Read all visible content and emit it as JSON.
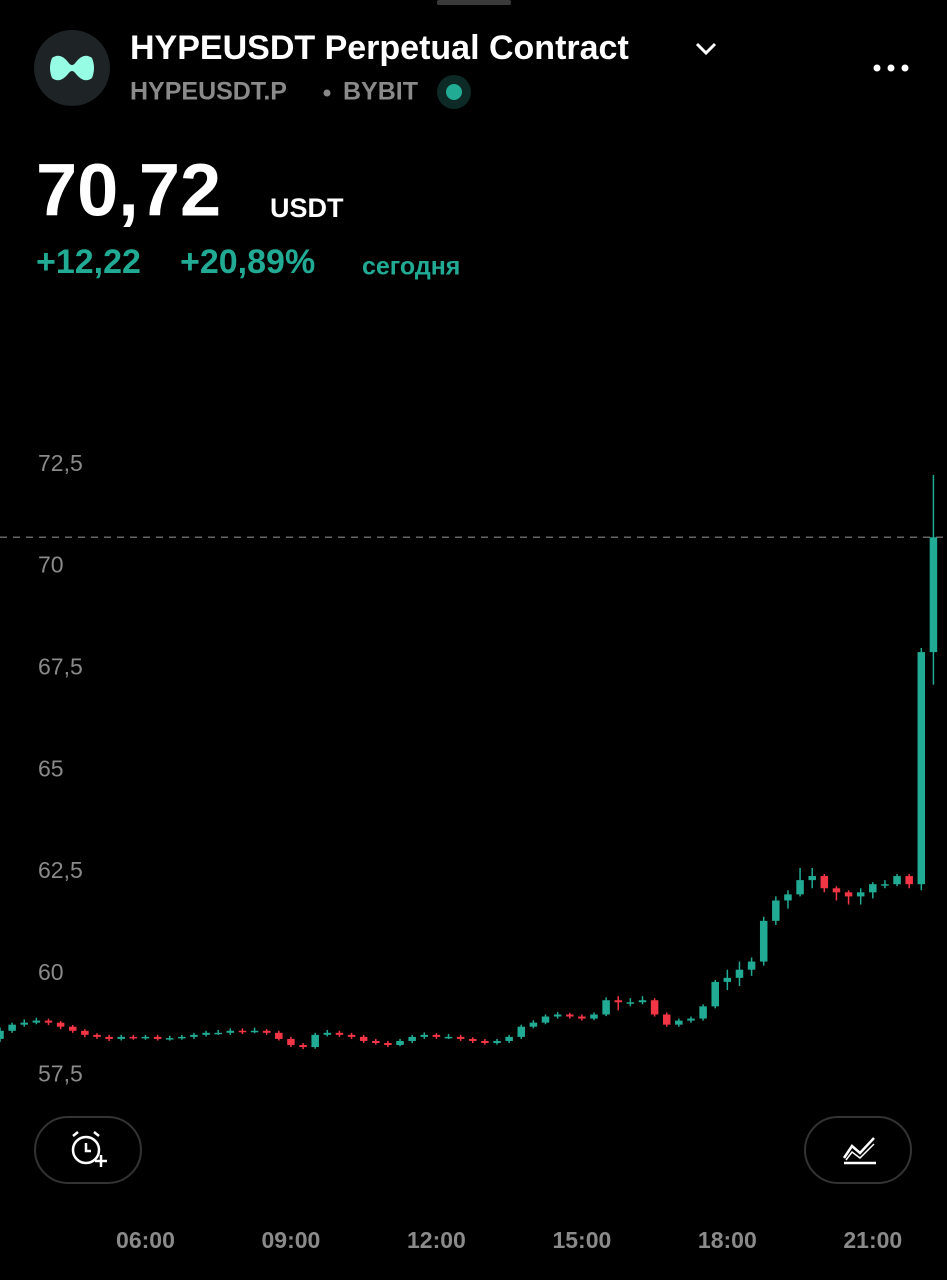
{
  "header": {
    "title": "HYPEUSDT Perpetual Contract",
    "symbol": "HYPEUSDT.P",
    "exchange": "BYBIT"
  },
  "price": {
    "last": "70,72",
    "currency": "USDT",
    "change": "+12,22",
    "change_percent": "+20,89%",
    "period": "сегодня"
  },
  "chart_data": {
    "type": "candlestick",
    "up_color": "#22ab94",
    "down_color": "#f23645",
    "x": [
      3,
      3.25,
      3.5,
      3.75,
      4,
      4.25,
      4.5,
      4.75,
      5,
      5.25,
      5.5,
      5.75,
      6,
      6.25,
      6.5,
      6.75,
      7,
      7.25,
      7.5,
      7.75,
      8,
      8.25,
      8.5,
      8.75,
      9,
      9.25,
      9.5,
      9.75,
      10,
      10.25,
      10.5,
      10.75,
      11,
      11.25,
      11.5,
      11.75,
      12,
      12.25,
      12.5,
      12.75,
      13,
      13.25,
      13.5,
      13.75,
      14,
      14.25,
      14.5,
      14.75,
      15,
      15.25,
      15.5,
      15.75,
      16,
      16.25,
      16.5,
      16.75,
      17,
      17.25,
      17.5,
      17.75,
      18,
      18.25,
      18.5,
      18.75,
      19,
      19.25,
      19.5,
      19.75,
      20,
      20.25,
      20.5,
      20.75,
      21,
      21.25,
      21.5,
      21.75,
      22,
      22.25
    ],
    "candles": [
      [
        58.4,
        58.68,
        58.32,
        58.6
      ],
      [
        58.6,
        58.8,
        58.55,
        58.75
      ],
      [
        58.75,
        58.88,
        58.7,
        58.8
      ],
      [
        58.8,
        58.92,
        58.76,
        58.85
      ],
      [
        58.85,
        58.9,
        58.74,
        58.8
      ],
      [
        58.8,
        58.84,
        58.64,
        58.7
      ],
      [
        58.7,
        58.74,
        58.55,
        58.6
      ],
      [
        58.6,
        58.64,
        58.44,
        58.5
      ],
      [
        58.5,
        58.54,
        58.4,
        58.45
      ],
      [
        58.45,
        58.5,
        58.35,
        58.4
      ],
      [
        58.4,
        58.5,
        58.36,
        58.45
      ],
      [
        58.45,
        58.5,
        58.38,
        58.42
      ],
      [
        58.42,
        58.5,
        58.38,
        58.45
      ],
      [
        58.45,
        58.5,
        58.36,
        58.4
      ],
      [
        58.4,
        58.48,
        58.36,
        58.42
      ],
      [
        58.42,
        58.5,
        58.38,
        58.45
      ],
      [
        58.45,
        58.55,
        58.4,
        58.5
      ],
      [
        58.5,
        58.6,
        58.46,
        58.55
      ],
      [
        58.55,
        58.62,
        58.5,
        58.55
      ],
      [
        58.55,
        58.66,
        58.5,
        58.6
      ],
      [
        58.6,
        58.66,
        58.52,
        58.58
      ],
      [
        58.58,
        58.68,
        58.54,
        58.6
      ],
      [
        58.6,
        58.64,
        58.5,
        58.55
      ],
      [
        58.55,
        58.6,
        58.36,
        58.4
      ],
      [
        58.4,
        58.45,
        58.2,
        58.25
      ],
      [
        58.25,
        58.3,
        58.15,
        58.2
      ],
      [
        58.2,
        58.55,
        58.16,
        58.5
      ],
      [
        58.5,
        58.62,
        58.46,
        58.55
      ],
      [
        58.55,
        58.6,
        58.45,
        58.5
      ],
      [
        58.5,
        58.55,
        58.4,
        58.45
      ],
      [
        58.45,
        58.5,
        58.3,
        58.35
      ],
      [
        58.35,
        58.4,
        58.26,
        58.3
      ],
      [
        58.3,
        58.35,
        58.2,
        58.25
      ],
      [
        58.25,
        58.4,
        58.22,
        58.35
      ],
      [
        58.35,
        58.5,
        58.3,
        58.45
      ],
      [
        58.45,
        58.56,
        58.4,
        58.5
      ],
      [
        58.5,
        58.54,
        58.4,
        58.45
      ],
      [
        58.45,
        58.52,
        58.4,
        58.45
      ],
      [
        58.45,
        58.5,
        58.35,
        58.4
      ],
      [
        58.4,
        58.44,
        58.3,
        58.35
      ],
      [
        58.35,
        58.4,
        58.26,
        58.3
      ],
      [
        58.3,
        58.4,
        58.26,
        58.35
      ],
      [
        58.35,
        58.5,
        58.3,
        58.45
      ],
      [
        58.45,
        58.75,
        58.4,
        58.7
      ],
      [
        58.7,
        58.86,
        58.66,
        58.8
      ],
      [
        58.8,
        59.0,
        58.76,
        58.95
      ],
      [
        58.95,
        59.06,
        58.9,
        59.0
      ],
      [
        59.0,
        59.04,
        58.9,
        58.95
      ],
      [
        58.95,
        59.0,
        58.85,
        58.9
      ],
      [
        58.9,
        59.05,
        58.86,
        59.0
      ],
      [
        59.0,
        59.42,
        58.96,
        59.35
      ],
      [
        59.35,
        59.45,
        59.1,
        59.3
      ],
      [
        59.3,
        59.4,
        59.2,
        59.3
      ],
      [
        59.3,
        59.45,
        59.25,
        59.35
      ],
      [
        59.35,
        59.4,
        58.95,
        59.0
      ],
      [
        59.0,
        59.05,
        58.7,
        58.75
      ],
      [
        58.75,
        58.9,
        58.7,
        58.85
      ],
      [
        58.85,
        58.95,
        58.8,
        58.9
      ],
      [
        58.9,
        59.25,
        58.85,
        59.2
      ],
      [
        59.2,
        59.85,
        59.15,
        59.8
      ],
      [
        59.8,
        60.1,
        59.6,
        59.9
      ],
      [
        59.9,
        60.3,
        59.7,
        60.1
      ],
      [
        60.1,
        60.4,
        59.95,
        60.3
      ],
      [
        60.3,
        61.4,
        60.2,
        61.3
      ],
      [
        61.3,
        61.9,
        61.2,
        61.8
      ],
      [
        61.8,
        62.05,
        61.6,
        61.95
      ],
      [
        61.95,
        62.6,
        61.9,
        62.3
      ],
      [
        62.3,
        62.6,
        62.1,
        62.4
      ],
      [
        62.4,
        62.45,
        62.0,
        62.1
      ],
      [
        62.1,
        62.15,
        61.8,
        62.0
      ],
      [
        62.0,
        62.05,
        61.7,
        61.9
      ],
      [
        61.9,
        62.1,
        61.7,
        62.0
      ],
      [
        62.0,
        62.25,
        61.85,
        62.2
      ],
      [
        62.2,
        62.3,
        62.1,
        62.2
      ],
      [
        62.2,
        62.45,
        62.15,
        62.4
      ],
      [
        62.4,
        62.45,
        62.1,
        62.2
      ],
      [
        62.2,
        68.0,
        62.05,
        67.9
      ],
      [
        67.9,
        72.25,
        67.1,
        70.72
      ]
    ],
    "xlim": [
      3.0,
      22.53
    ],
    "ylim": [
      56.9,
      73.6
    ],
    "xticks": [
      {
        "value": 6,
        "label": "06:00"
      },
      {
        "value": 9,
        "label": "09:00"
      },
      {
        "value": 12,
        "label": "12:00"
      },
      {
        "value": 15,
        "label": "15:00"
      },
      {
        "value": 18,
        "label": "18:00"
      },
      {
        "value": 21,
        "label": "21:00"
      }
    ],
    "yticks": [
      {
        "value": 57.5,
        "label": "57,5"
      },
      60,
      {
        "value": 62.5,
        "label": "62,5"
      },
      65,
      {
        "value": 67.5,
        "label": "67,5"
      },
      70,
      {
        "value": 72.5,
        "label": "72,5"
      }
    ]
  }
}
